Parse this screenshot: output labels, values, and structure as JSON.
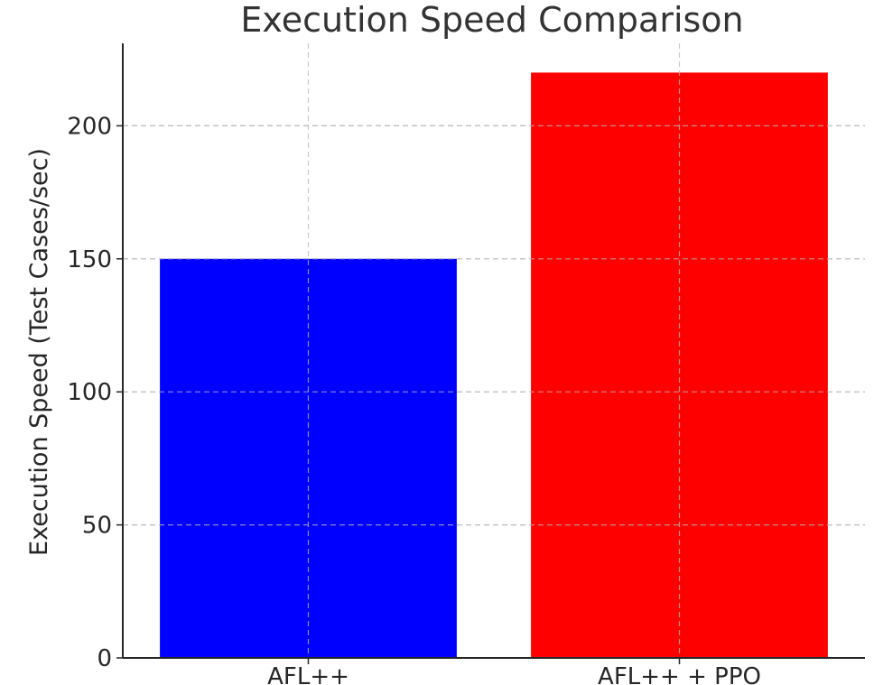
{
  "chart_data": {
    "type": "bar",
    "title": "Execution Speed Comparison",
    "xlabel": "",
    "ylabel": "Execution Speed (Test Cases/sec)",
    "categories": [
      "AFL++",
      "AFL++ + PPO"
    ],
    "values": [
      150,
      220
    ],
    "colors": [
      "#0000ff",
      "#ff0000"
    ],
    "ylim": [
      0,
      231
    ],
    "yticks": [
      0,
      50,
      100,
      150,
      200
    ],
    "grid": true,
    "legend": "none"
  }
}
